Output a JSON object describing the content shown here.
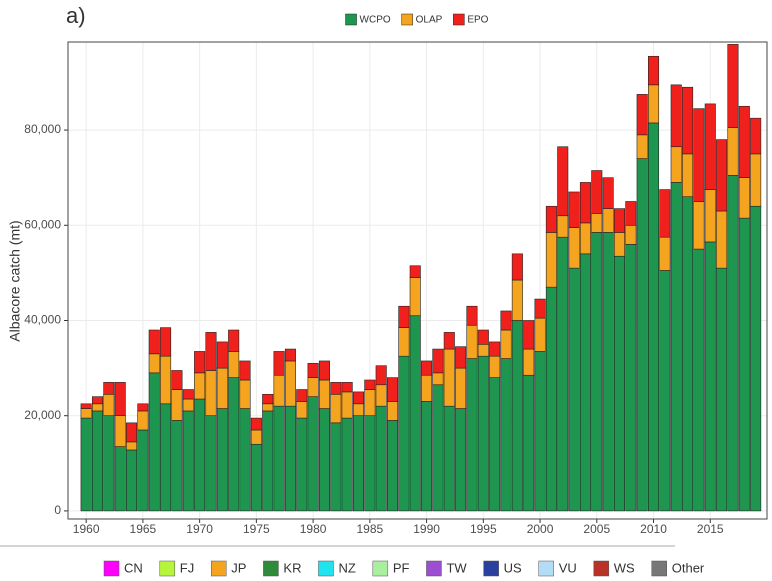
{
  "chart_data": {
    "type": "stacked-bar",
    "panel_label": "a)",
    "ylabel": "Albacore catch (mt)",
    "legend": "top",
    "grid": true,
    "x": [
      1960,
      1961,
      1962,
      1963,
      1964,
      1965,
      1966,
      1967,
      1968,
      1969,
      1970,
      1971,
      1972,
      1973,
      1974,
      1975,
      1976,
      1977,
      1978,
      1979,
      1980,
      1981,
      1982,
      1983,
      1984,
      1985,
      1986,
      1987,
      1988,
      1989,
      1990,
      1991,
      1992,
      1993,
      1994,
      1995,
      1996,
      1997,
      1998,
      1999,
      2000,
      2001,
      2002,
      2003,
      2004,
      2005,
      2006,
      2007,
      2008,
      2009,
      2010,
      2011,
      2012,
      2013,
      2014,
      2015,
      2016,
      2017,
      2018,
      2019
    ],
    "xlim": [
      1958.4,
      2020.0
    ],
    "xticks": [
      1960,
      1965,
      1970,
      1975,
      1980,
      1985,
      1990,
      1995,
      2000,
      2005,
      2010,
      2015
    ],
    "ylim": [
      -1700,
      98500
    ],
    "yticks": [
      0,
      {
        "value": 20000,
        "label": "20,000"
      },
      {
        "value": 40000,
        "label": "40,000"
      },
      {
        "value": 60000,
        "label": "60,000"
      },
      {
        "value": 80000,
        "label": "80,000"
      }
    ],
    "series": [
      {
        "name": "WCPO",
        "color": "#1e9650",
        "values": [
          19500,
          21000,
          20000,
          13500,
          12800,
          17000,
          29000,
          22500,
          19000,
          21000,
          23500,
          20000,
          21500,
          28000,
          21500,
          14000,
          21000,
          22000,
          22000,
          19500,
          24000,
          21500,
          18500,
          19500,
          20000,
          20000,
          22000,
          19000,
          32500,
          41000,
          23000,
          26500,
          22000,
          21500,
          32000,
          32500,
          28000,
          32000,
          40000,
          28500,
          33500,
          47000,
          57500,
          51000,
          54000,
          58500,
          58500,
          53500,
          56000,
          74000,
          81500,
          50500,
          69000,
          66000,
          55000,
          56500,
          51000,
          70500,
          61500,
          64000
        ]
      },
      {
        "name": "OLAP",
        "color": "#f5a41f",
        "values": [
          2000,
          1500,
          4500,
          6500,
          1700,
          4000,
          4000,
          10000,
          6500,
          2500,
          5500,
          9500,
          8500,
          5500,
          6000,
          3000,
          1500,
          6500,
          9500,
          3500,
          4000,
          6000,
          6000,
          5500,
          2500,
          5500,
          4500,
          4000,
          6000,
          8000,
          5500,
          2500,
          12000,
          8500,
          7000,
          2500,
          4500,
          6000,
          8500,
          5500,
          7000,
          11500,
          4500,
          8500,
          6500,
          4000,
          5000,
          5000,
          4000,
          5000,
          8000,
          7000,
          7500,
          9000,
          10000,
          11000,
          12000,
          10000,
          8500,
          11000
        ]
      },
      {
        "name": "EPO",
        "color": "#f0211c",
        "values": [
          1000,
          1500,
          2500,
          7000,
          4000,
          1500,
          5000,
          6000,
          4000,
          2000,
          4500,
          8000,
          5500,
          4500,
          4000,
          2500,
          2000,
          5000,
          2500,
          2500,
          3000,
          4000,
          2500,
          2000,
          2500,
          2000,
          4000,
          5000,
          4500,
          2500,
          3000,
          5000,
          3500,
          4500,
          4000,
          3000,
          3000,
          4000,
          5500,
          6000,
          4000,
          5500,
          14500,
          7500,
          8500,
          9000,
          6500,
          5000,
          5000,
          8500,
          6000,
          10000,
          13000,
          14000,
          19500,
          18000,
          15000,
          17500,
          15000,
          7500
        ]
      }
    ]
  },
  "bottom_legend": [
    {
      "label": "CN",
      "color": "#ff00ff"
    },
    {
      "label": "FJ",
      "color": "#b5f53c"
    },
    {
      "label": "JP",
      "color": "#f5a41f"
    },
    {
      "label": "KR",
      "color": "#2e8b3a"
    },
    {
      "label": "NZ",
      "color": "#1fe3ee"
    },
    {
      "label": "PF",
      "color": "#a8f0a0"
    },
    {
      "label": "TW",
      "color": "#9b4fd0"
    },
    {
      "label": "US",
      "color": "#2b3f9e"
    },
    {
      "label": "VU",
      "color": "#b3dcf7"
    },
    {
      "label": "WS",
      "color": "#b83228"
    },
    {
      "label": "Other",
      "color": "#777777"
    }
  ]
}
